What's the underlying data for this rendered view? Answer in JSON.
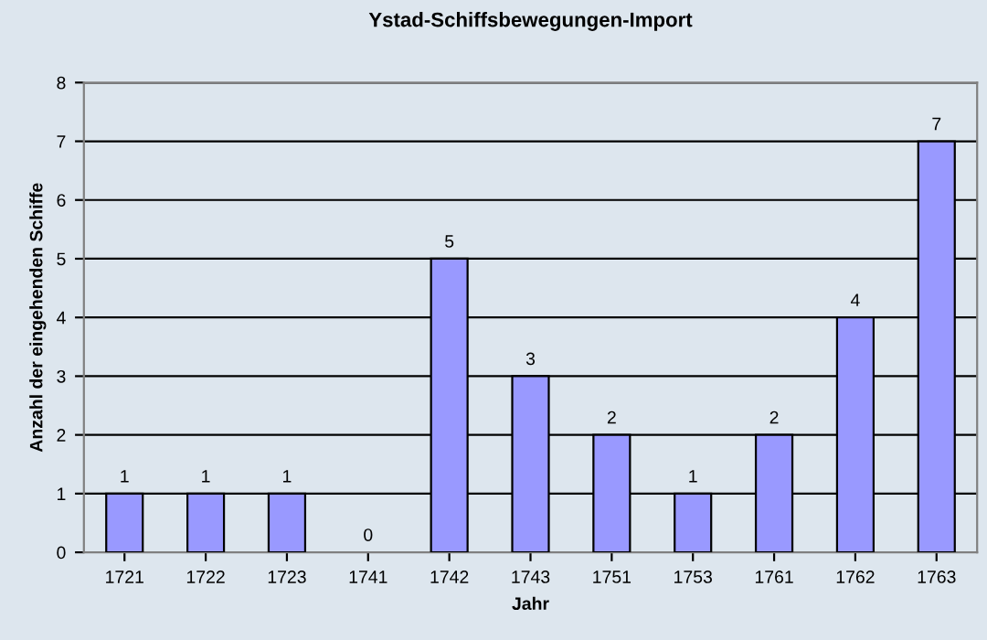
{
  "chart_data": {
    "type": "bar",
    "title": "Ystad-Schiffsbewegungen-Import",
    "xlabel": "Jahr",
    "ylabel": "Anzahl der eingehenden Schiffe",
    "categories": [
      "1721",
      "1722",
      "1723",
      "1741",
      "1742",
      "1743",
      "1751",
      "1753",
      "1761",
      "1762",
      "1763"
    ],
    "values": [
      1,
      1,
      1,
      0,
      5,
      3,
      2,
      1,
      2,
      4,
      7
    ],
    "color": "#9999ff",
    "ylim": [
      0,
      8
    ],
    "yticks": [
      0,
      1,
      2,
      3,
      4,
      5,
      6,
      7,
      8
    ],
    "grid": "y",
    "data_labels": true
  }
}
